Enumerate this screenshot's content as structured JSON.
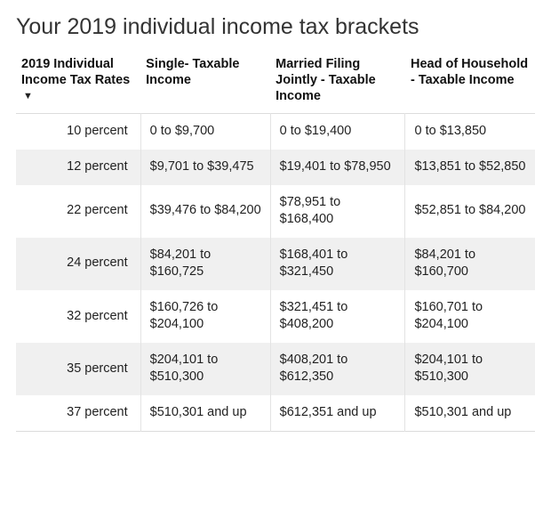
{
  "title": "Your 2019 individual income tax brackets",
  "table": {
    "type": "table",
    "background_color": "#ffffff",
    "alt_row_color": "#f0f0f0",
    "border_color": "#e3e3e3",
    "header_fontsize": 14.5,
    "cell_fontsize": 14.5,
    "text_color": "#222222",
    "columns": [
      {
        "label": "2019 Individual Income Tax Rates",
        "sortable": true,
        "sort_dir": "desc",
        "align": "right"
      },
      {
        "label": "Single- Taxable Income",
        "align": "left"
      },
      {
        "label": "Married Filing Jointly - Taxable Income",
        "align": "left"
      },
      {
        "label": "Head of Household - Taxable Income",
        "align": "left"
      }
    ],
    "rows": [
      [
        "10 percent",
        "0 to $9,700",
        "0 to $19,400",
        "0 to $13,850"
      ],
      [
        "12 percent",
        "$9,701 to $39,475",
        "$19,401 to $78,950",
        "$13,851 to $52,850"
      ],
      [
        "22 percent",
        "$39,476 to $84,200",
        "$78,951 to $168,400",
        "$52,851 to $84,200"
      ],
      [
        "24 percent",
        "$84,201 to $160,725",
        "$168,401 to $321,450",
        "$84,201 to $160,700"
      ],
      [
        "32 percent",
        "$160,726 to $204,100",
        "$321,451 to $408,200",
        "$160,701 to $204,100"
      ],
      [
        "35 percent",
        "$204,101 to $510,300",
        "$408,201 to $612,350",
        "$204,101 to $510,300"
      ],
      [
        "37 percent",
        "$510,301 and up",
        "$612,351 and up",
        "$510,301 and up"
      ]
    ]
  }
}
